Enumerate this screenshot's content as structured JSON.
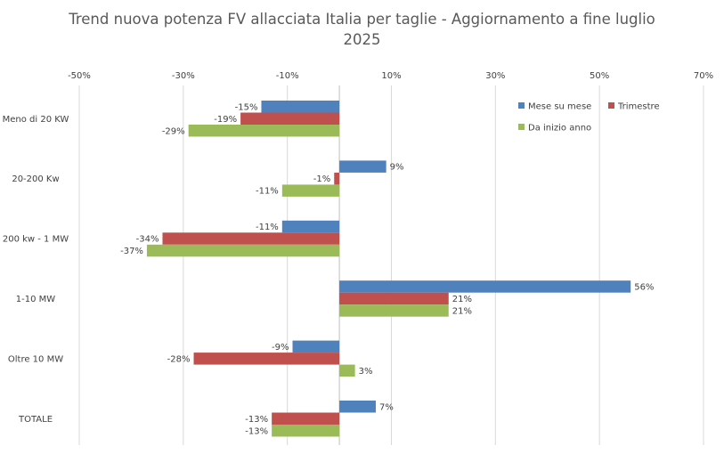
{
  "chart_data": {
    "type": "bar",
    "orientation": "horizontal",
    "title_line1": "Trend nuova potenza FV allacciata  Italia per taglie - Aggiornamento a fine luglio",
    "title_line2": "2025",
    "categories": [
      "Meno di 20 KW",
      "20-200 Kw",
      "200 kw - 1 MW",
      "1-10 MW",
      "Oltre 10 MW",
      "TOTALE"
    ],
    "series": [
      {
        "name": "Mese su mese",
        "color": "#4f81bd",
        "values": [
          -15,
          9,
          -11,
          56,
          -9,
          7
        ],
        "labels": [
          "-15%",
          "9%",
          "-11%",
          "56%",
          "-9%",
          "7%"
        ]
      },
      {
        "name": "Trimestre",
        "color": "#c0504d",
        "values": [
          -19,
          -1,
          -34,
          21,
          -28,
          -13
        ],
        "labels": [
          "-19%",
          "-1%",
          "-34%",
          "21%",
          "-28%",
          "-13%"
        ]
      },
      {
        "name": "Da inizio anno",
        "color": "#9bbb59",
        "values": [
          -29,
          -11,
          -37,
          21,
          3,
          -13
        ],
        "labels": [
          "-29%",
          "-11%",
          "-37%",
          "21%",
          "3%",
          "-13%"
        ]
      }
    ],
    "xlim": [
      -50,
      70
    ],
    "xticks": [
      -50,
      -30,
      -10,
      10,
      30,
      50,
      70
    ],
    "xtick_labels": [
      "-50%",
      "-30%",
      "-10%",
      "10%",
      "30%",
      "50%",
      "70%"
    ],
    "axis_position": "top",
    "grid": true,
    "legend_position": "top-right"
  }
}
